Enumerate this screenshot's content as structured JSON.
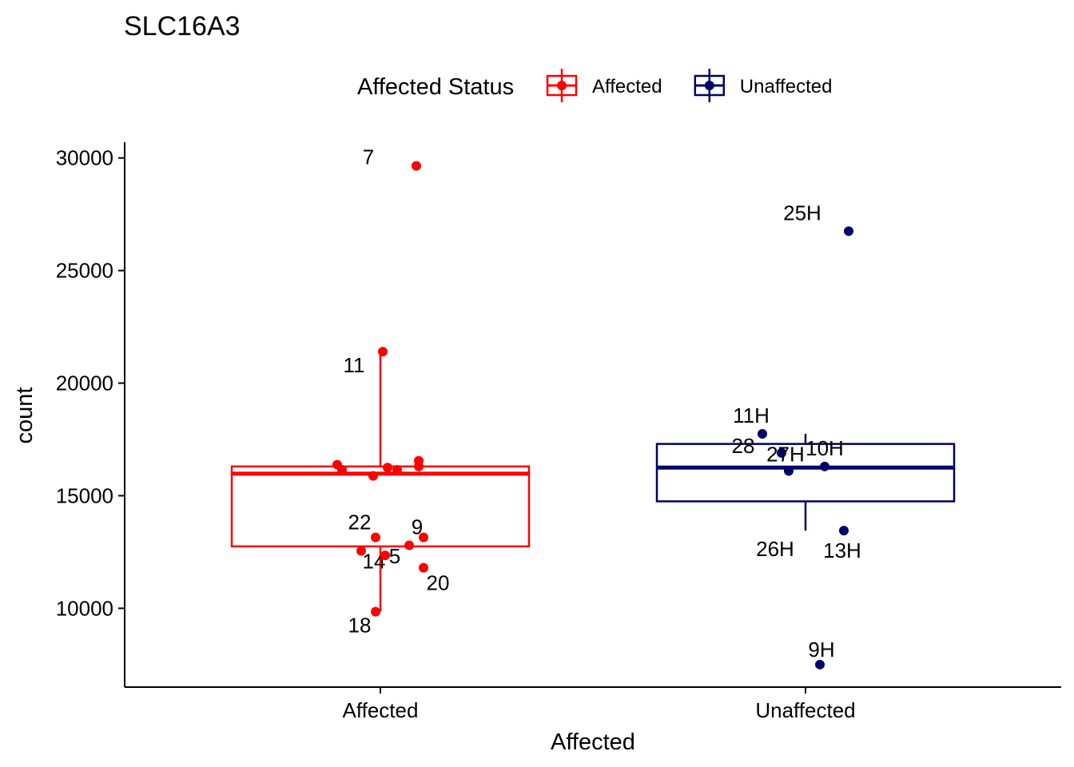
{
  "chart_data": {
    "type": "box",
    "title": "SLC16A3",
    "xlabel": "Affected",
    "ylabel": "count",
    "ylim": [
      6500,
      30700
    ],
    "yticks": [
      10000,
      15000,
      20000,
      25000,
      30000
    ],
    "categories": [
      "Affected",
      "Unaffected"
    ],
    "legend": {
      "title": "Affected Status",
      "placement": "top",
      "entries": [
        {
          "name": "Affected",
          "color": "#ff0000"
        },
        {
          "name": "Unaffected",
          "color": "#000066"
        }
      ]
    },
    "boxes": [
      {
        "category": "Affected",
        "color": "#ff0000",
        "q1": 12750,
        "median": 15980,
        "q3": 16300,
        "whisker_low": 9850,
        "whisker_high": 21400
      },
      {
        "category": "Unaffected",
        "color": "#000066",
        "q1": 14750,
        "median": 16250,
        "q3": 17300,
        "whisker_low": 13450,
        "whisker_high": 17750
      }
    ],
    "points": [
      {
        "category": "Affected",
        "jitter": 0.15,
        "value": 29650,
        "label": "7"
      },
      {
        "category": "Affected",
        "jitter": 0.01,
        "value": 21400,
        "label": "11"
      },
      {
        "category": "Affected",
        "jitter": -0.18,
        "value": 16380,
        "label": ""
      },
      {
        "category": "Affected",
        "jitter": -0.16,
        "value": 16150,
        "label": ""
      },
      {
        "category": "Affected",
        "jitter": -0.03,
        "value": 15880,
        "label": ""
      },
      {
        "category": "Affected",
        "jitter": 0.03,
        "value": 16250,
        "label": ""
      },
      {
        "category": "Affected",
        "jitter": 0.07,
        "value": 16150,
        "label": ""
      },
      {
        "category": "Affected",
        "jitter": 0.16,
        "value": 16550,
        "label": ""
      },
      {
        "category": "Affected",
        "jitter": 0.16,
        "value": 16300,
        "label": ""
      },
      {
        "category": "Affected",
        "jitter": -0.02,
        "value": 13150,
        "label": "22"
      },
      {
        "category": "Affected",
        "jitter": 0.18,
        "value": 13150,
        "label": ""
      },
      {
        "category": "Affected",
        "jitter": 0.12,
        "value": 12800,
        "label": "9"
      },
      {
        "category": "Affected",
        "jitter": -0.08,
        "value": 12550,
        "label": "14"
      },
      {
        "category": "Affected",
        "jitter": 0.02,
        "value": 12350,
        "label": "5"
      },
      {
        "category": "Affected",
        "jitter": 0.18,
        "value": 11800,
        "label": "20"
      },
      {
        "category": "Affected",
        "jitter": -0.02,
        "value": 9850,
        "label": "18"
      },
      {
        "category": "Unaffected",
        "jitter": 0.18,
        "value": 26750,
        "label": "25H"
      },
      {
        "category": "Unaffected",
        "jitter": -0.18,
        "value": 17750,
        "label": "11H"
      },
      {
        "category": "Unaffected",
        "jitter": -0.1,
        "value": 16900,
        "label": "28"
      },
      {
        "category": "Unaffected",
        "jitter": -0.07,
        "value": 16100,
        "label": "27H"
      },
      {
        "category": "Unaffected",
        "jitter": 0.08,
        "value": 16300,
        "label": "10H"
      },
      {
        "category": "Unaffected",
        "jitter": 0.16,
        "value": 13450,
        "label": "13H"
      },
      {
        "category": "Unaffected",
        "jitter": 0.06,
        "value": 7500,
        "label": "9H"
      },
      {
        "category": "Unaffected",
        "jitter": 0.0,
        "value": 13450,
        "label": "26H"
      }
    ]
  }
}
